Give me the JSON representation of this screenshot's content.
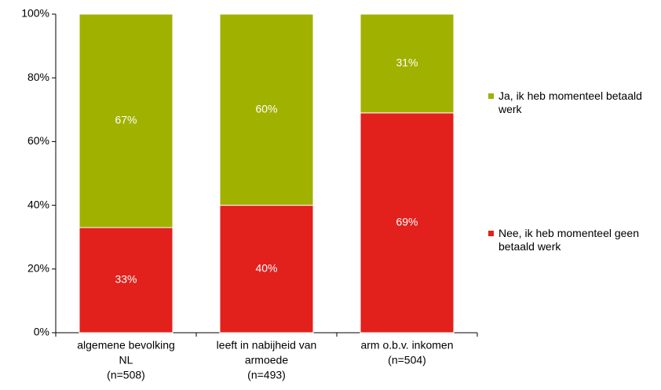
{
  "chart_data": {
    "type": "stacked_bar",
    "categories": [
      [
        "algemene bevolking",
        "NL",
        "(n=508)"
      ],
      [
        "leeft in nabijheid van",
        "armoede",
        "(n=493)"
      ],
      [
        "arm o.b.v. inkomen",
        "(n=504)"
      ]
    ],
    "series": [
      {
        "name": "Nee, ik heb momenteel geen betaald werk",
        "color": "#e2201c",
        "values": [
          33,
          40,
          69
        ],
        "value_labels": [
          "33%",
          "40%",
          "69%"
        ]
      },
      {
        "name": "Ja, ik heb momenteel betaald werk",
        "color": "#a1b100",
        "values": [
          67,
          60,
          31
        ],
        "value_labels": [
          "67%",
          "60%",
          "31%"
        ]
      }
    ],
    "ylim": [
      0,
      100
    ],
    "yticks": [
      {
        "value": 0,
        "label": "0%"
      },
      {
        "value": 20,
        "label": "20%"
      },
      {
        "value": 40,
        "label": "40%"
      },
      {
        "value": 60,
        "label": "60%"
      },
      {
        "value": 80,
        "label": "80%"
      },
      {
        "value": 100,
        "label": "100%"
      }
    ],
    "legend": "right"
  }
}
